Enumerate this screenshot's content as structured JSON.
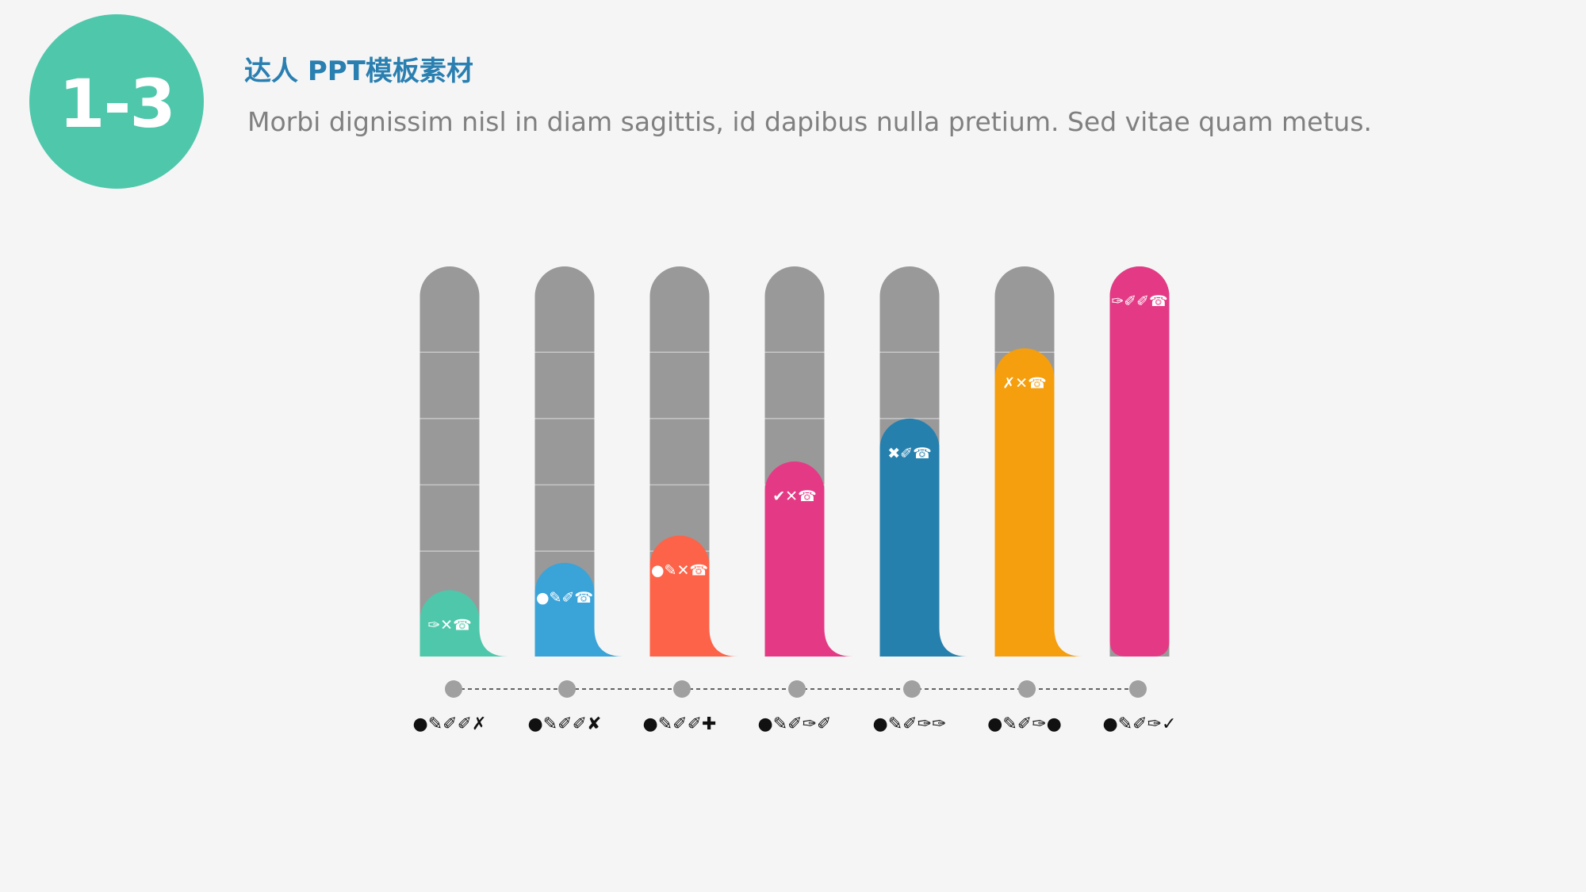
{
  "header": {
    "badge": "1-3",
    "title": "达人 PPT模板素材",
    "subtitle": "Morbi dignissim nisl in diam sagittis, id dapibus nulla pretium. Sed vitae quam metus."
  },
  "chart_data": {
    "type": "bar",
    "categories": [
      "●✎✐✐✗",
      "●✎✐✐✘",
      "●✎✐✐✚",
      "●✎✐✑✐",
      "●✎✐✑✑",
      "●✎✐✑●",
      "●✎✐✑✓"
    ],
    "series": [
      {
        "values": [
          17,
          24,
          31,
          50,
          61,
          79,
          100
        ],
        "labels": [
          "✑✕☎",
          "●✎✐☎",
          "●✎✕☎",
          "✔✕☎",
          "✖✐☎",
          "✗✕☎",
          "✑✐✐☎"
        ],
        "colors": [
          "#4fc7ab",
          "#3aa3d8",
          "#fd6348",
          "#e43a86",
          "#2680ad",
          "#f59e0e",
          "#e43a86"
        ]
      }
    ],
    "ylim": [
      0,
      100
    ],
    "track_color": "#999999",
    "grid": true,
    "legend": "none"
  }
}
